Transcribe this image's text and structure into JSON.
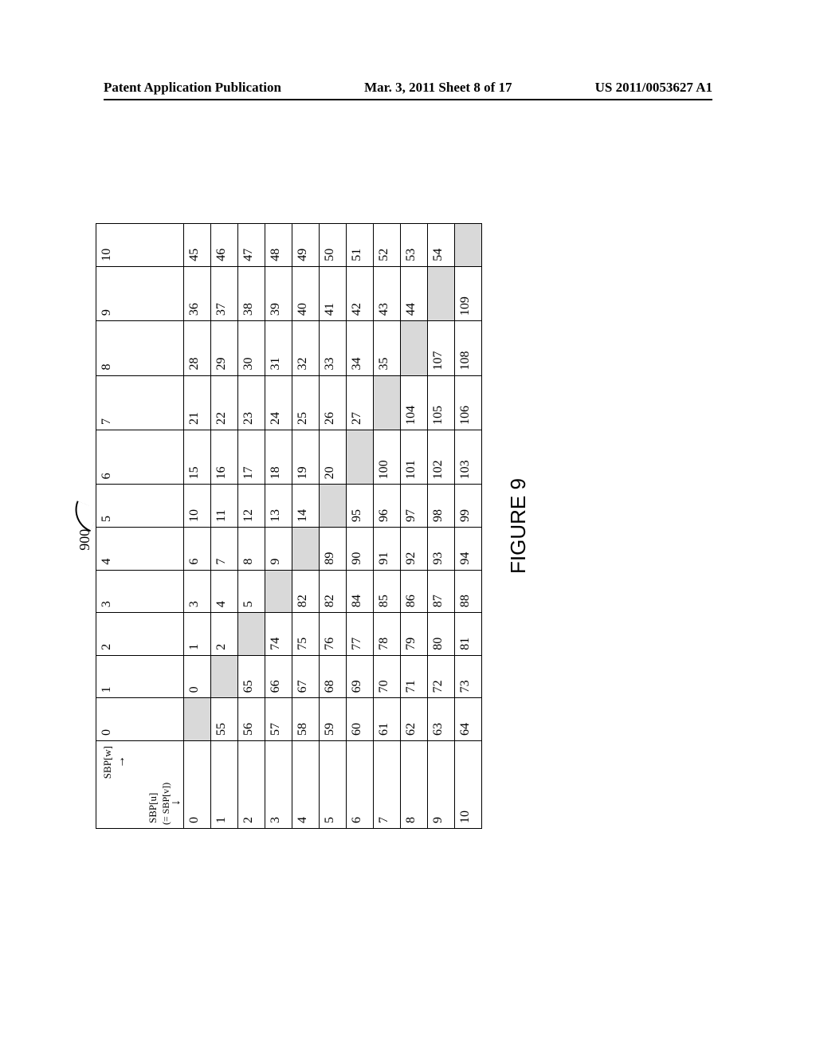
{
  "header": {
    "left": "Patent Application Publication",
    "center": "Mar. 3, 2011  Sheet 8 of 17",
    "right": "US 2011/0053627 A1"
  },
  "figure": {
    "ref_number": "900",
    "caption": "FIGURE 9",
    "corner": {
      "top": "SBP[w]",
      "bottom": "SBP[u]",
      "sub": "(= SBP[v])"
    },
    "col_headers": [
      "0",
      "1",
      "2",
      "3",
      "4",
      "5",
      "6",
      "7",
      "8",
      "9",
      "10"
    ],
    "row_headers": [
      "0",
      "1",
      "2",
      "3",
      "4",
      "5",
      "6",
      "7",
      "8",
      "9",
      "10"
    ],
    "cells": [
      [
        "",
        "0",
        "1",
        "3",
        "6",
        "10",
        "15",
        "21",
        "28",
        "36",
        "45"
      ],
      [
        "55",
        "",
        "2",
        "4",
        "7",
        "11",
        "16",
        "22",
        "29",
        "37",
        "46"
      ],
      [
        "56",
        "65",
        "",
        "5",
        "8",
        "12",
        "17",
        "23",
        "30",
        "38",
        "47"
      ],
      [
        "57",
        "66",
        "74",
        "",
        "9",
        "13",
        "18",
        "24",
        "31",
        "39",
        "48"
      ],
      [
        "58",
        "67",
        "75",
        "82",
        "",
        "14",
        "19",
        "25",
        "32",
        "40",
        "49"
      ],
      [
        "59",
        "68",
        "76",
        "82",
        "89",
        "",
        "20",
        "26",
        "33",
        "41",
        "50"
      ],
      [
        "60",
        "69",
        "77",
        "84",
        "90",
        "95",
        "",
        "27",
        "34",
        "42",
        "51"
      ],
      [
        "61",
        "70",
        "78",
        "85",
        "91",
        "96",
        "100",
        "",
        "35",
        "43",
        "52"
      ],
      [
        "62",
        "71",
        "79",
        "86",
        "92",
        "97",
        "101",
        "104",
        "",
        "44",
        "53"
      ],
      [
        "63",
        "72",
        "80",
        "87",
        "93",
        "98",
        "102",
        "105",
        "107",
        "",
        "54"
      ],
      [
        "64",
        "73",
        "81",
        "88",
        "94",
        "99",
        "103",
        "106",
        "108",
        "109",
        ""
      ]
    ],
    "shaded_diagonal": true,
    "colors": {
      "background": "#ffffff",
      "text": "#000000",
      "border": "#000000",
      "shaded": "#d9d9d9"
    },
    "cell_font_size": 16,
    "header_font_size": 17,
    "caption_font_size": 26
  }
}
